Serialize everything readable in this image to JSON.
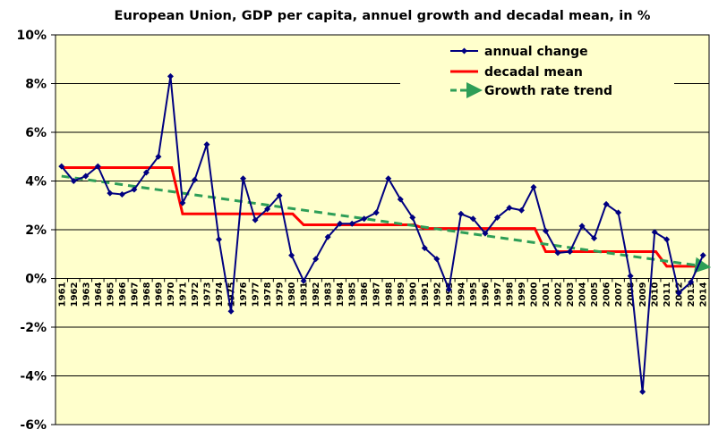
{
  "chart_data": {
    "type": "line",
    "title": "European Union, GDP per capita, annuel growth and decadal mean, in %",
    "xlabel": "",
    "ylabel": "",
    "ylim": [
      -6,
      10
    ],
    "y_ticks": [
      "10%",
      "8%",
      "6%",
      "4%",
      "2%",
      "0%",
      "-2%",
      "-4%",
      "-6%"
    ],
    "grid": "horizontal",
    "legend_position": "top-right",
    "x": [
      1961,
      1962,
      1963,
      1964,
      1965,
      1966,
      1967,
      1968,
      1969,
      1970,
      1971,
      1972,
      1973,
      1974,
      1975,
      1976,
      1977,
      1978,
      1979,
      1980,
      1981,
      1982,
      1983,
      1984,
      1985,
      1986,
      1987,
      1988,
      1989,
      1990,
      1991,
      1992,
      1993,
      1994,
      1995,
      1996,
      1997,
      1998,
      1999,
      2000,
      2001,
      2002,
      2003,
      2004,
      2005,
      2006,
      2007,
      2008,
      2009,
      2010,
      2011,
      2012,
      2013,
      2014
    ],
    "series": [
      {
        "name": "annual change",
        "color": "#000080",
        "marker": "diamond",
        "values": [
          4.6,
          4.0,
          4.2,
          4.6,
          3.5,
          3.45,
          3.65,
          4.35,
          5.0,
          8.3,
          3.1,
          4.05,
          5.5,
          1.6,
          -1.35,
          4.1,
          2.4,
          2.85,
          3.4,
          0.95,
          -0.1,
          0.8,
          1.7,
          2.25,
          2.25,
          2.45,
          2.7,
          4.1,
          3.25,
          2.5,
          1.25,
          0.8,
          -0.45,
          2.65,
          2.45,
          1.85,
          2.5,
          2.9,
          2.8,
          3.75,
          1.95,
          1.05,
          1.1,
          2.15,
          1.65,
          3.05,
          2.7,
          0.1,
          -4.65,
          1.9,
          1.6,
          -0.6,
          -0.15,
          0.95
        ]
      },
      {
        "name": "decadal mean",
        "color": "#ff0000",
        "values": [
          4.55,
          4.55,
          4.55,
          4.55,
          4.55,
          4.55,
          4.55,
          4.55,
          4.55,
          4.55,
          2.65,
          2.65,
          2.65,
          2.65,
          2.65,
          2.65,
          2.65,
          2.65,
          2.65,
          2.65,
          2.2,
          2.2,
          2.2,
          2.2,
          2.2,
          2.2,
          2.2,
          2.2,
          2.2,
          2.2,
          2.05,
          2.05,
          2.05,
          2.05,
          2.05,
          2.05,
          2.05,
          2.05,
          2.05,
          2.05,
          1.1,
          1.1,
          1.1,
          1.1,
          1.1,
          1.1,
          1.1,
          1.1,
          1.1,
          1.1,
          0.5,
          0.5,
          0.5,
          0.5
        ]
      },
      {
        "name": "Growth rate trend",
        "color": "#2e9e57",
        "style": "dashed-arrow",
        "start": [
          1961,
          4.2
        ],
        "end": [
          2014,
          0.5
        ]
      }
    ]
  }
}
